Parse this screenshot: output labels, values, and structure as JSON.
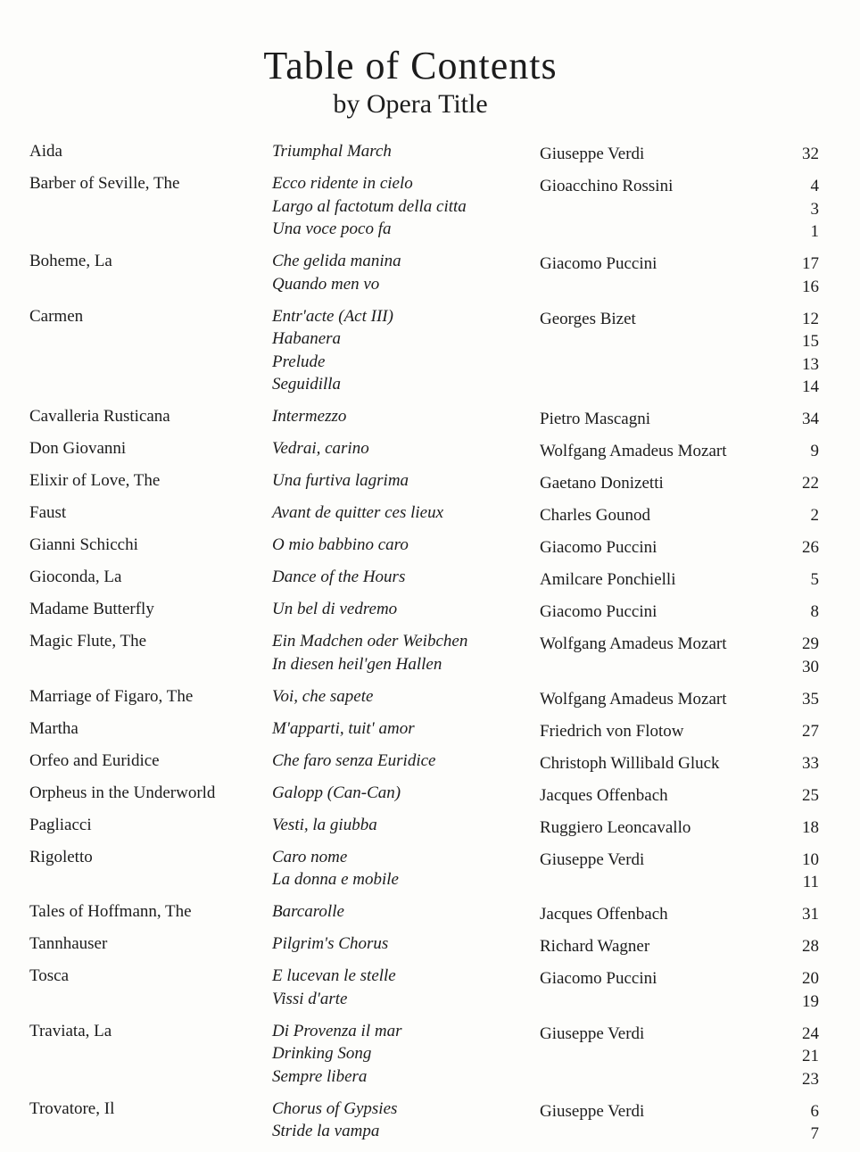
{
  "header": {
    "title": "Table of Contents",
    "subtitle": "by Opera Title"
  },
  "entries": [
    {
      "opera": "Aida",
      "composer": "Giuseppe Verdi",
      "pieces": [
        {
          "title": "Triumphal March",
          "page": "32"
        }
      ]
    },
    {
      "opera": "Barber of Seville, The",
      "composer": "Gioacchino Rossini",
      "pieces": [
        {
          "title": "Ecco ridente in cielo",
          "page": "4"
        },
        {
          "title": "Largo al factotum della citta",
          "page": "3"
        },
        {
          "title": "Una voce poco fa",
          "page": "1"
        }
      ]
    },
    {
      "opera": "Boheme, La",
      "composer": "Giacomo Puccini",
      "pieces": [
        {
          "title": "Che gelida manina",
          "page": "17"
        },
        {
          "title": "Quando men vo",
          "page": "16"
        }
      ]
    },
    {
      "opera": "Carmen",
      "composer": "Georges Bizet",
      "pieces": [
        {
          "title": "Entr'acte (Act III)",
          "page": "12"
        },
        {
          "title": "Habanera",
          "page": "15"
        },
        {
          "title": "Prelude",
          "page": "13"
        },
        {
          "title": "Seguidilla",
          "page": "14"
        }
      ]
    },
    {
      "opera": "Cavalleria Rusticana",
      "composer": "Pietro Mascagni",
      "pieces": [
        {
          "title": "Intermezzo",
          "page": "34"
        }
      ]
    },
    {
      "opera": "Don Giovanni",
      "composer": "Wolfgang Amadeus Mozart",
      "pieces": [
        {
          "title": "Vedrai, carino",
          "page": "9"
        }
      ]
    },
    {
      "opera": "Elixir of Love, The",
      "composer": "Gaetano Donizetti",
      "pieces": [
        {
          "title": "Una furtiva lagrima",
          "page": "22"
        }
      ]
    },
    {
      "opera": "Faust",
      "composer": "Charles Gounod",
      "pieces": [
        {
          "title": "Avant de quitter ces lieux",
          "page": "2"
        }
      ]
    },
    {
      "opera": "Gianni Schicchi",
      "composer": "Giacomo Puccini",
      "pieces": [
        {
          "title": "O mio babbino caro",
          "page": "26"
        }
      ]
    },
    {
      "opera": "Gioconda, La",
      "composer": "Amilcare Ponchielli",
      "pieces": [
        {
          "title": "Dance of the Hours",
          "page": "5"
        }
      ]
    },
    {
      "opera": "Madame Butterfly",
      "composer": "Giacomo Puccini",
      "pieces": [
        {
          "title": "Un bel di vedremo",
          "page": "8"
        }
      ]
    },
    {
      "opera": "Magic Flute, The",
      "composer": "Wolfgang Amadeus Mozart",
      "pieces": [
        {
          "title": "Ein Madchen oder Weibchen",
          "page": "29"
        },
        {
          "title": "In diesen heil'gen Hallen",
          "page": "30"
        }
      ]
    },
    {
      "opera": "Marriage of Figaro, The",
      "composer": "Wolfgang Amadeus Mozart",
      "pieces": [
        {
          "title": "Voi, che sapete",
          "page": "35"
        }
      ]
    },
    {
      "opera": "Martha",
      "composer": "Friedrich von Flotow",
      "pieces": [
        {
          "title": "M'apparti, tuit' amor",
          "page": "27"
        }
      ]
    },
    {
      "opera": "Orfeo and Euridice",
      "composer": "Christoph Willibald Gluck",
      "pieces": [
        {
          "title": "Che faro senza Euridice",
          "page": "33"
        }
      ]
    },
    {
      "opera": "Orpheus in the Underworld",
      "composer": "Jacques Offenbach",
      "pieces": [
        {
          "title": "Galopp (Can-Can)",
          "page": "25"
        }
      ]
    },
    {
      "opera": "Pagliacci",
      "composer": "Ruggiero Leoncavallo",
      "pieces": [
        {
          "title": "Vesti, la giubba",
          "page": "18"
        }
      ]
    },
    {
      "opera": "Rigoletto",
      "composer": "Giuseppe Verdi",
      "pieces": [
        {
          "title": "Caro nome",
          "page": "10"
        },
        {
          "title": "La donna e mobile",
          "page": "11"
        }
      ]
    },
    {
      "opera": "Tales of Hoffmann, The",
      "composer": "Jacques Offenbach",
      "pieces": [
        {
          "title": "Barcarolle",
          "page": "31"
        }
      ]
    },
    {
      "opera": "Tannhauser",
      "composer": "Richard Wagner",
      "pieces": [
        {
          "title": "Pilgrim's Chorus",
          "page": "28"
        }
      ]
    },
    {
      "opera": "Tosca",
      "composer": "Giacomo Puccini",
      "pieces": [
        {
          "title": "E lucevan le stelle",
          "page": "20"
        },
        {
          "title": "Vissi d'arte",
          "page": "19"
        }
      ]
    },
    {
      "opera": "Traviata, La",
      "composer": "Giuseppe Verdi",
      "pieces": [
        {
          "title": "Di Provenza il mar",
          "page": "24"
        },
        {
          "title": "Drinking Song",
          "page": "21"
        },
        {
          "title": "Sempre libera",
          "page": "23"
        }
      ]
    },
    {
      "opera": "Trovatore, Il",
      "composer": "Giuseppe Verdi",
      "pieces": [
        {
          "title": "Chorus of Gypsies",
          "page": "6"
        },
        {
          "title": "Stride la vampa",
          "page": "7"
        }
      ]
    }
  ]
}
